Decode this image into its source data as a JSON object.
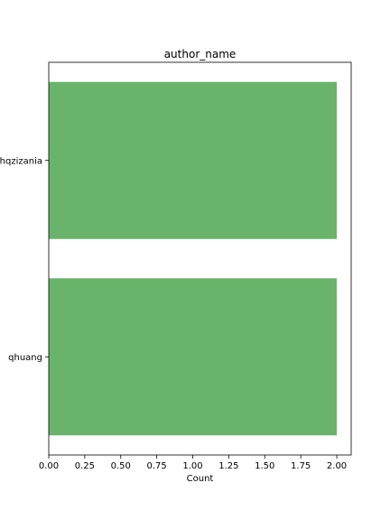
{
  "chart_data": {
    "type": "bar",
    "orientation": "horizontal",
    "title": "author_name",
    "xlabel": "Count",
    "ylabel": "",
    "categories": [
      "hqzizania",
      "qhuang"
    ],
    "values": [
      2,
      2
    ],
    "xlim": [
      0,
      2.1
    ],
    "xticks": [
      "0.00",
      "0.25",
      "0.50",
      "0.75",
      "1.00",
      "1.25",
      "1.50",
      "1.75",
      "2.00"
    ],
    "bar_color": "#6ab36a",
    "grid": false,
    "legend": "none"
  }
}
